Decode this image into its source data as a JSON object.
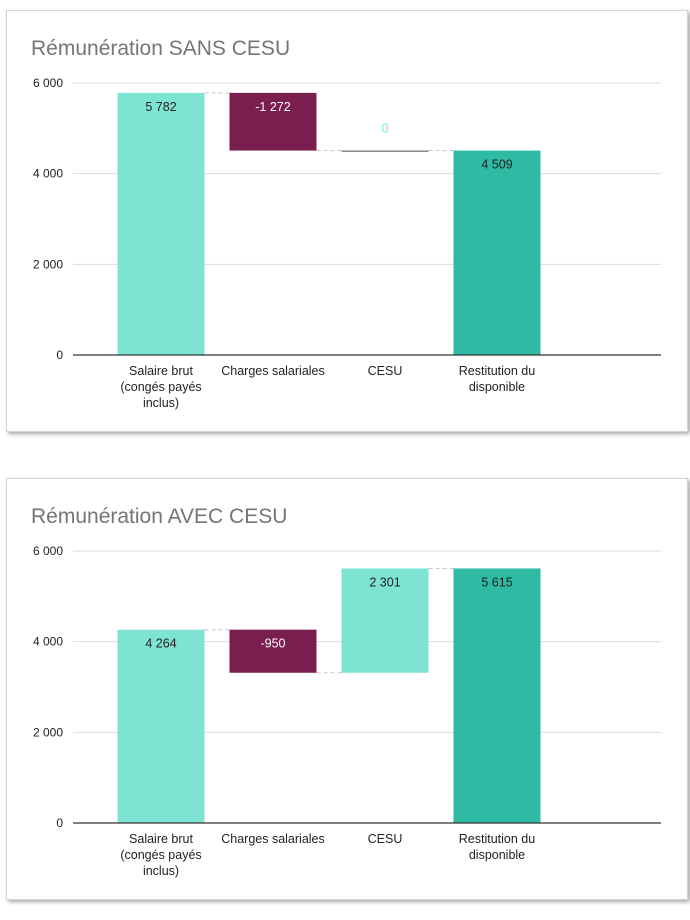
{
  "chart_data": [
    {
      "type": "waterfall",
      "title": "Rémunération SANS CESU",
      "ylim": [
        0,
        6000
      ],
      "yticks": [
        "0",
        "2 000",
        "4 000",
        "6 000"
      ],
      "categories": [
        [
          "Salaire brut",
          "(congés payés",
          "inclus)"
        ],
        [
          "Charges salariales"
        ],
        [
          "CESU"
        ],
        [
          "Restitution du",
          "disponible"
        ]
      ],
      "values": [
        5782,
        -1272,
        0,
        4509
      ],
      "value_labels": [
        "5 782",
        "-1 272",
        "0",
        "4 509"
      ],
      "kinds": [
        "total",
        "delta",
        "delta",
        "total"
      ],
      "grid": true,
      "colors": {
        "increase": "#7de3d3",
        "decrease": "#7a1d4f",
        "total": "#2ebaa3"
      }
    },
    {
      "type": "waterfall",
      "title": "Rémunération AVEC CESU",
      "ylim": [
        0,
        6000
      ],
      "yticks": [
        "0",
        "2 000",
        "4 000",
        "6 000"
      ],
      "categories": [
        [
          "Salaire brut",
          "(congés payés",
          "inclus)"
        ],
        [
          "Charges salariales"
        ],
        [
          "CESU"
        ],
        [
          "Restitution du",
          "disponible"
        ]
      ],
      "values": [
        4264,
        -950,
        2301,
        5615
      ],
      "value_labels": [
        "4 264",
        "-950",
        "2 301",
        "5 615"
      ],
      "kinds": [
        "total",
        "delta",
        "delta",
        "total"
      ],
      "grid": true,
      "colors": {
        "increase": "#7de3d3",
        "decrease": "#7a1d4f",
        "total": "#2ebaa3"
      }
    }
  ]
}
